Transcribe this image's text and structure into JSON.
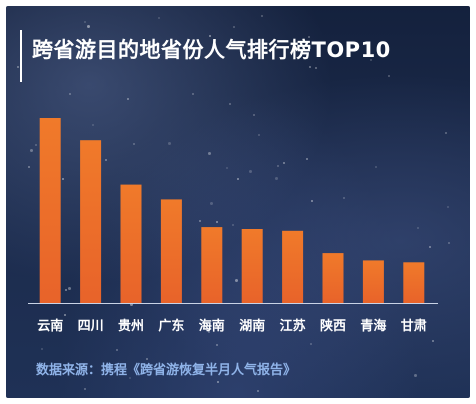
{
  "title": "跨省游目的地省份人气排行榜TOP10",
  "source": "数据来源：携程《跨省游恢复半月人气报告》",
  "colors": {
    "bar_top": "#f07a2a",
    "bar_bottom": "#e8632a",
    "axis": "#c9d3e6",
    "label": "#ffffff",
    "source": "#8fb3e8"
  },
  "chart_data": {
    "type": "bar",
    "title": "跨省游目的地省份人气排行榜TOP10",
    "xlabel": "",
    "ylabel": "",
    "categories": [
      "云南",
      "四川",
      "贵州",
      "广东",
      "海南",
      "湖南",
      "江苏",
      "陕西",
      "青海",
      "甘肃"
    ],
    "values": [
      100,
      88,
      64,
      56,
      41,
      40,
      39,
      27,
      23,
      22
    ],
    "ylim": [
      0,
      100
    ],
    "grid": false,
    "legend": "none"
  }
}
